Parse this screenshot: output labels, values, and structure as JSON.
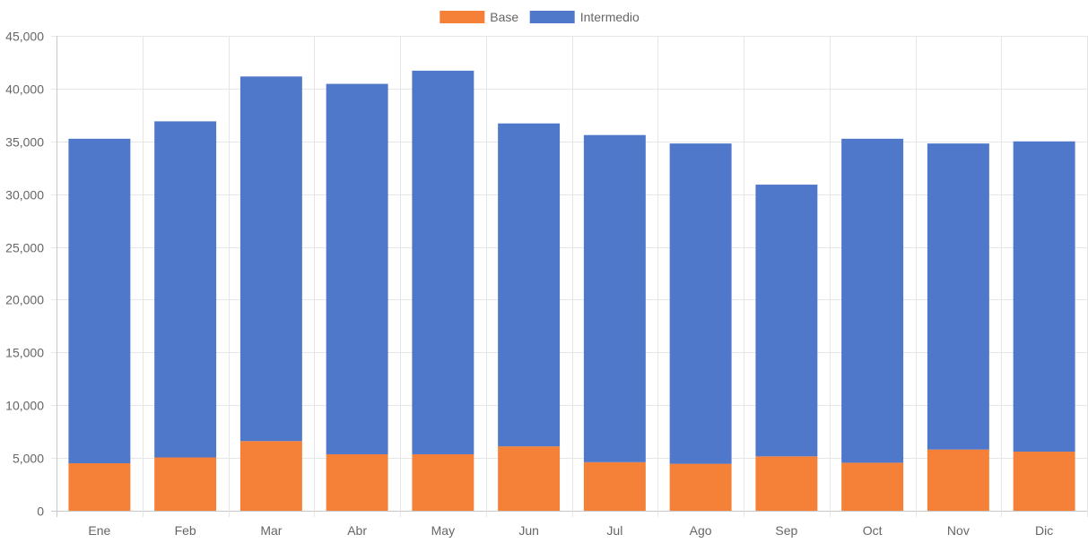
{
  "chart_data": {
    "type": "bar",
    "stacked": true,
    "categories": [
      "Ene",
      "Feb",
      "Mar",
      "Abr",
      "May",
      "Jun",
      "Jul",
      "Ago",
      "Sep",
      "Oct",
      "Nov",
      "Dic"
    ],
    "series": [
      {
        "name": "Base",
        "color": "#f58038",
        "values": [
          4500,
          5050,
          6600,
          5350,
          5350,
          6100,
          4600,
          4450,
          5150,
          4550,
          5800,
          5600
        ]
      },
      {
        "name": "Intermedio",
        "color": "#4f78cb",
        "values": [
          30750,
          31850,
          34550,
          35100,
          36350,
          30600,
          31000,
          30350,
          25750,
          30700,
          29000,
          29400
        ]
      }
    ],
    "ylim": [
      0,
      45000
    ],
    "yticks": [
      "0",
      "5,000",
      "10,000",
      "15,000",
      "20,000",
      "25,000",
      "30,000",
      "35,000",
      "40,000",
      "45,000"
    ],
    "legend_position": "top",
    "grid": true,
    "title": "",
    "xlabel": "",
    "ylabel": ""
  }
}
